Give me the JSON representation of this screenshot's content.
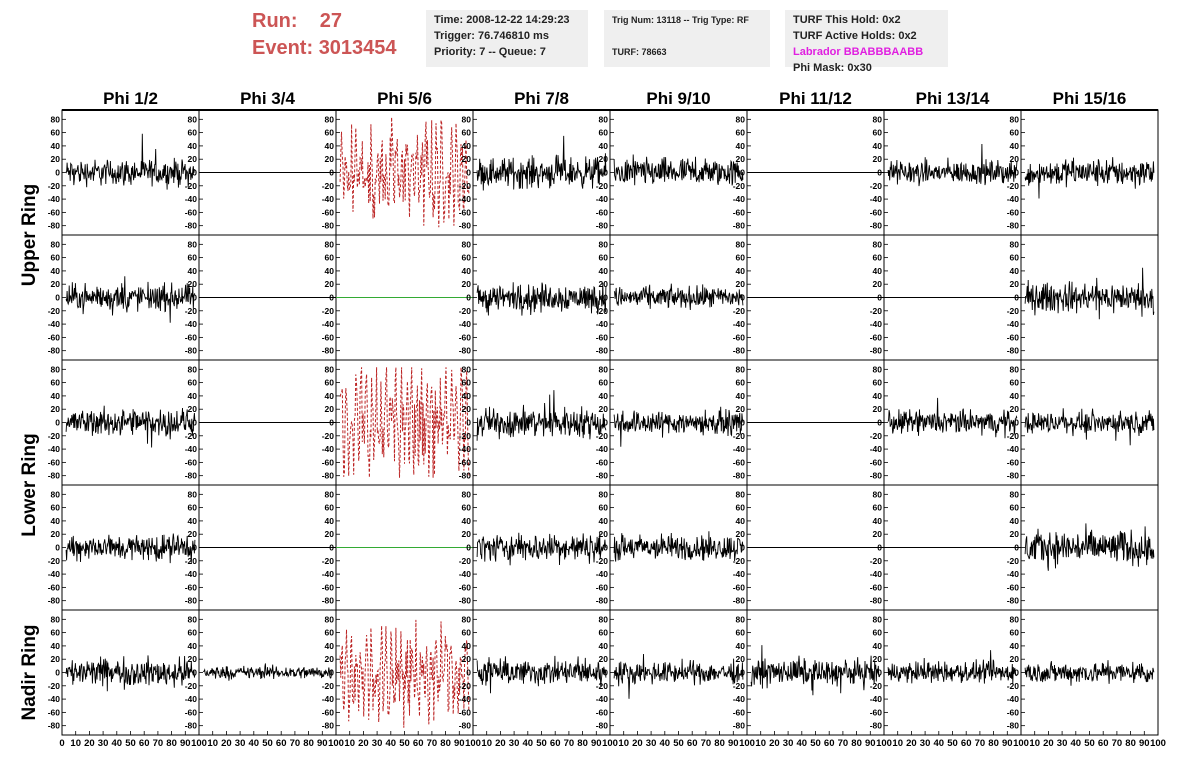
{
  "header": {
    "run_label": "Run:",
    "run_value": "27",
    "event_label": "Event:",
    "event_value": "3013454",
    "time": "Time: 2008-12-22 14:29:23",
    "trigger": "Trigger: 76.746810 ms",
    "priority": "Priority: 7 -- Queue: 7",
    "trig_num": "Trig Num: 13118 -- Trig Type: RF",
    "turf": "TURF: 78663",
    "turf_hold": "TURF This Hold: 0x2",
    "turf_active": "TURF Active Holds: 0x2",
    "labrador": "Labrador BBABBBAABB",
    "phi_mask": "Phi Mask: 0x30"
  },
  "chart_data": {
    "type": "line",
    "columns": [
      "Phi 1/2",
      "Phi 3/4",
      "Phi 5/6",
      "Phi 7/8",
      "Phi 9/10",
      "Phi 11/12",
      "Phi 13/14",
      "Phi 15/16"
    ],
    "ring_labels": [
      "Upper Ring",
      "Lower Ring",
      "Nadir Ring"
    ],
    "ring_row_spans": [
      2,
      2,
      1
    ],
    "ylim": [
      -85,
      85
    ],
    "yticks": [
      -80,
      -60,
      -40,
      -20,
      0,
      20,
      40,
      60,
      80
    ],
    "xlim": [
      0,
      100
    ],
    "xticks": [
      0,
      10,
      20,
      30,
      40,
      50,
      60,
      70,
      80,
      90,
      100
    ],
    "colors": {
      "normal": "#000000",
      "triggered": "#bb2222",
      "flat_alt": "#33aa33",
      "text_red": "#cc5555",
      "labrador": "#e020e0"
    },
    "panels": [
      [
        "noise:12",
        "flat",
        "triggered:25",
        "noise:14",
        "noise:13",
        "flat",
        "noise:11",
        "noise:13"
      ],
      [
        "noise:12",
        "flat",
        "flat_alt",
        "noise:13",
        "noise:10",
        "flat",
        "flat",
        "noise:14"
      ],
      [
        "noise:13",
        "flat",
        "triggered:28",
        "noise:14",
        "noise:11",
        "flat",
        "noise:11",
        "noise:10"
      ],
      [
        "noise:12",
        "flat",
        "flat_alt",
        "noise:13",
        "noise:12",
        "flat",
        "flat",
        "noise:16"
      ],
      [
        "noise:13",
        "noise:6",
        "triggered:24",
        "noise:12",
        "noise:10",
        "noise:12",
        "noise:10",
        "noise:10"
      ]
    ]
  }
}
